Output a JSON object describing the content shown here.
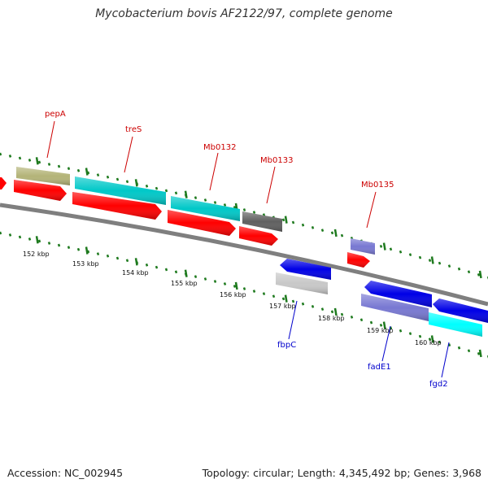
{
  "title": "Mycobacterium bovis AF2122/97, complete genome",
  "footer": {
    "accession": "Accession: NC_002945",
    "summary": "Topology: circular; Length: 4,345,492 bp; Genes: 3,968"
  },
  "scale_labels": [
    "152 kbp",
    "153 kbp",
    "154 kbp",
    "155 kbp",
    "156 kbp",
    "157 kbp",
    "158 kbp",
    "159 kbp",
    "160 kbp"
  ],
  "upper_labels": [
    "pepA",
    "treS",
    "Mb0132",
    "Mb0133",
    "Mb0135"
  ],
  "lower_labels": [
    "fbpC",
    "fadE1",
    "fgd2"
  ],
  "colors": {
    "label_upper": "#cc0000",
    "label_lower": "#0000cc",
    "tick": "#1e7a1e",
    "backbone": "#7f7f7f",
    "red_cds": "#ff0000",
    "cyan_cds": "#00c8c8",
    "olive": "#b4b478",
    "dark_gray": "#606060",
    "purple": "#7878d2",
    "blue": "#0000e6",
    "light_gray": "#c8c8c8",
    "bright_cyan": "#00ffff"
  }
}
